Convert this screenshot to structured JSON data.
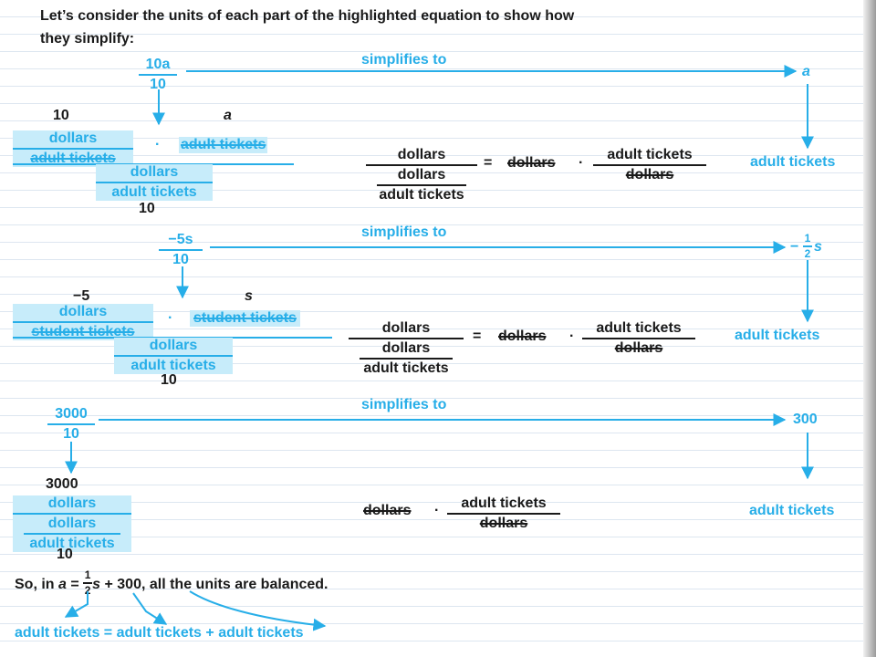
{
  "intro": {
    "line1": "Let’s consider the units of each part of the highlighted equation to show how",
    "line2": "they simplify:"
  },
  "simplifies_label": "simplifies to",
  "section1": {
    "fraction_num": "10a",
    "fraction_den": "10",
    "result": "a",
    "coef": "10",
    "var": "a",
    "unit_num": "dollars",
    "unit_den": "adult tickets",
    "dot": "·",
    "mult_unit": "adult tickets",
    "div_num": "dollars",
    "div_den": "adult tickets",
    "bottom_num": "10",
    "eq_num": "dollars",
    "eq_inner_num": "dollars",
    "eq_inner_den": "adult tickets",
    "eq_equals": "=",
    "eq_rhs1": "dollars",
    "eq_rhs_num": "adult tickets",
    "eq_rhs_den": "dollars",
    "result_unit": "adult tickets"
  },
  "section2": {
    "fraction_num": "−5s",
    "fraction_den": "10",
    "result_sign": "−",
    "result_num": "1",
    "result_den": "2",
    "result_var": "s",
    "coef": "−5",
    "var": "s",
    "unit_num": "dollars",
    "unit_den": "student tickets",
    "dot": "·",
    "mult_unit": "student tickets",
    "div_num": "dollars",
    "div_den": "adult tickets",
    "bottom_num": "10",
    "eq_num": "dollars",
    "eq_inner_num": "dollars",
    "eq_inner_den": "adult tickets",
    "eq_equals": "=",
    "eq_rhs1": "dollars",
    "eq_rhs_num": "adult tickets",
    "eq_rhs_den": "dollars",
    "result_unit": "adult tickets"
  },
  "section3": {
    "fraction_num": "3000",
    "fraction_den": "10",
    "result": "300",
    "coef": "3000",
    "unit_num": "dollars",
    "unit_inner_num": "dollars",
    "unit_inner_den": "adult tickets",
    "bottom_num": "10",
    "eq_lhs": "dollars",
    "dot": "·",
    "eq_rhs_num": "adult tickets",
    "eq_rhs_den": "dollars",
    "result_unit": "adult tickets"
  },
  "conclusion": {
    "prefix": "So, in ",
    "var_a": "a",
    "eq": " = ",
    "half_num": "1",
    "half_den": "2",
    "var_s": "s",
    "suffix": " + 300, all the units are balanced.",
    "units_line": "adult tickets = adult tickets + adult tickets"
  },
  "colors": {
    "accent": "#27aee8",
    "highlight": "#c7ecfa",
    "text": "#1a1a1a"
  }
}
